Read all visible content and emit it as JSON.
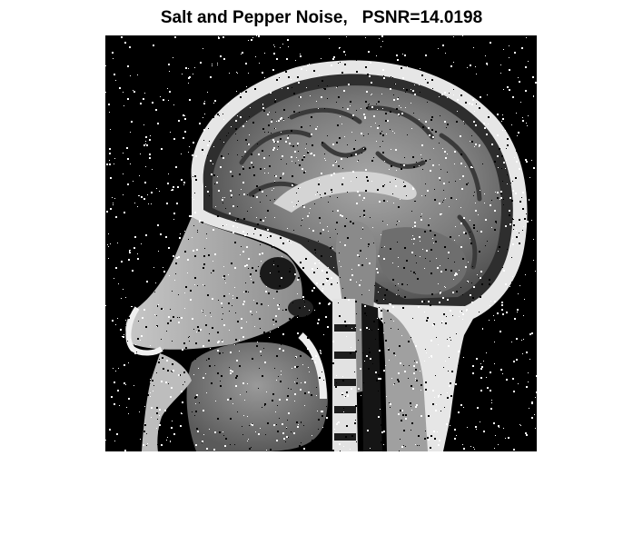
{
  "figure": {
    "title": "Salt and Pepper Noise,   PSNR=14.0198",
    "colors": {
      "background": "#ffffff",
      "image_base": "#000000",
      "tissue_light": "#d8d8d8",
      "tissue_mid": "#8a8a8a",
      "tissue_dark": "#3a3a3a",
      "title_text": "#000000"
    }
  }
}
